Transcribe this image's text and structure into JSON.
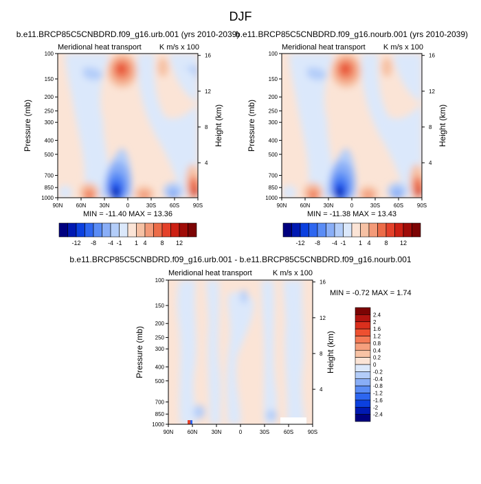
{
  "figure_title": "DJF",
  "chart_data": [
    {
      "type": "heatmap",
      "title": "b.e11.BRCP85C5CNBDRD.f09_g16.urb.001 (yrs 2010-2039)",
      "subtitle_left": "Meridional heat transport",
      "subtitle_right": "K m/s x 100",
      "xlabel": "",
      "ylabel": "Pressure (mb)",
      "y2label": "Height (km)",
      "x_ticks": [
        "90N",
        "60N",
        "30N",
        "0",
        "30S",
        "60S",
        "90S"
      ],
      "y_ticks": [
        "100",
        "150",
        "200",
        "250",
        "300",
        "400",
        "500",
        "700",
        "850",
        "1000"
      ],
      "y2_ticks": [
        "16",
        "12",
        "8",
        "4"
      ],
      "stats": "MIN = -11.40  MAX = 13.36",
      "features": [
        {
          "lat": 10,
          "p": 200,
          "value": 13.36
        },
        {
          "lat": 10,
          "p": 975,
          "value": -11.4
        },
        {
          "lat": 42,
          "p": 975,
          "value": 7
        },
        {
          "lat": -25,
          "p": 985,
          "value": 6
        },
        {
          "lat": -80,
          "p": 960,
          "value": 8
        },
        {
          "lat": -55,
          "p": 960,
          "value": -5
        }
      ]
    },
    {
      "type": "heatmap",
      "title": "b.e11.BRCP85C5CNBDRD.f09_g16.nourb.001 (yrs 2010-2039)",
      "subtitle_left": "Meridional heat transport",
      "subtitle_right": "K m/s x 100",
      "xlabel": "",
      "ylabel": "Pressure (mb)",
      "y2label": "Height (km)",
      "x_ticks": [
        "90N",
        "60N",
        "30N",
        "0",
        "30S",
        "60S",
        "90S"
      ],
      "y_ticks": [
        "100",
        "150",
        "200",
        "250",
        "300",
        "400",
        "500",
        "700",
        "850",
        "1000"
      ],
      "y2_ticks": [
        "16",
        "12",
        "8",
        "4"
      ],
      "stats": "MIN = -11.38  MAX = 13.43",
      "features": [
        {
          "lat": 10,
          "p": 200,
          "value": 13.43
        },
        {
          "lat": 10,
          "p": 975,
          "value": -11.38
        },
        {
          "lat": 42,
          "p": 975,
          "value": 7
        },
        {
          "lat": -25,
          "p": 985,
          "value": 6
        },
        {
          "lat": -80,
          "p": 960,
          "value": 8
        },
        {
          "lat": -55,
          "p": 960,
          "value": -5
        }
      ]
    },
    {
      "type": "heatmap",
      "title": "b.e11.BRCP85C5CNBDRD.f09_g16.urb.001 - b.e11.BRCP85C5CNBDRD.f09_g16.nourb.001",
      "subtitle_left": "Meridional heat transport",
      "subtitle_right": "K m/s x 100",
      "xlabel": "",
      "ylabel": "Pressure (mb)",
      "y2label": "Height (km)",
      "x_ticks": [
        "90N",
        "60N",
        "30N",
        "0",
        "30S",
        "60S",
        "90S"
      ],
      "y_ticks": [
        "100",
        "150",
        "200",
        "250",
        "300",
        "400",
        "500",
        "700",
        "850",
        "1000"
      ],
      "y2_ticks": [
        "16",
        "12",
        "8",
        "4"
      ],
      "stats": "MIN = -0.72  MAX =  1.74",
      "features": [
        {
          "lat": 60,
          "p": 990,
          "value": 1.74
        },
        {
          "lat": 58,
          "p": 1000,
          "value": -0.72
        }
      ]
    }
  ],
  "colorbar_main": {
    "labels": [
      "-12",
      "-8",
      "-4",
      "-1",
      "1",
      "4",
      "8",
      "12"
    ],
    "colors": [
      "#00007f",
      "#0019b2",
      "#0b40df",
      "#2d66f0",
      "#5a8cf5",
      "#89aef7",
      "#b3cdf9",
      "#dbe8fb",
      "#fbe4d6",
      "#f6c1a4",
      "#f39a78",
      "#ec6c48",
      "#e4412a",
      "#cc2014",
      "#a00c08",
      "#7c0404"
    ]
  },
  "colorbar_diff": {
    "labels": [
      "2.4",
      "2",
      "1.6",
      "1.2",
      "0.8",
      "0.4",
      "0.2",
      "0",
      "-0.2",
      "-0.4",
      "-0.8",
      "-1.2",
      "-1.6",
      "-2",
      "-2.4"
    ],
    "colors": [
      "#7c0404",
      "#b21410",
      "#db2f1d",
      "#ee5030",
      "#f47a56",
      "#f6a07e",
      "#f8c3a5",
      "#fbe4d6",
      "#dbe8fb",
      "#b3cdf9",
      "#89aef7",
      "#5a8cf5",
      "#2d66f0",
      "#0b40df",
      "#0019b2",
      "#00007f"
    ]
  }
}
